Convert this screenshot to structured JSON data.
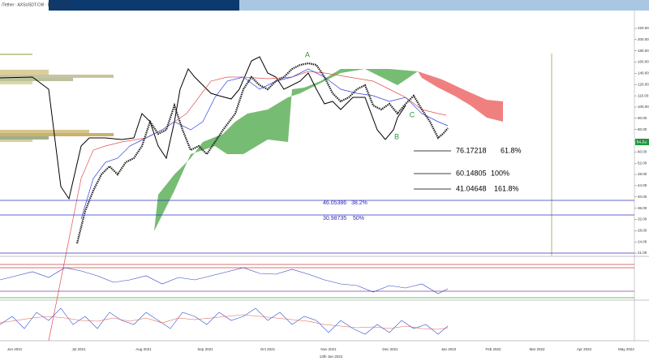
{
  "header": {
    "title": "/Tether · AXSUSDT.CW · Daily · USD"
  },
  "price_axis": [
    "220.00",
    "200.00",
    "180.00",
    "160.00",
    "140.00",
    "120.00",
    "110.00",
    "100.00",
    "90.00",
    "80.00",
    "72.00",
    "60.00",
    "52.00",
    "48.00",
    "44.00",
    "40.00",
    "36.00",
    "32.00",
    "28.00",
    "24.00",
    "21.00"
  ],
  "current_price": "64.88",
  "fib_levels": [
    {
      "price": "76.17218",
      "ratio": "61.8%"
    },
    {
      "price": "60.14805",
      "ratio": "100%"
    },
    {
      "price": "41.04648",
      "ratio": "161.8%"
    },
    {
      "price": "46.05386",
      "ratio": "38.2%"
    },
    {
      "price": "30.98735",
      "ratio": "50%"
    }
  ],
  "wave_labels": [
    "A",
    "B",
    "C"
  ],
  "date_axis": [
    "Jun 2021",
    "Jul 2021",
    "Aug 2021",
    "Sep 2021",
    "Oct 2021",
    "Nov 2021",
    "Dec 2021",
    "Jan 2022",
    "Feb 2022",
    "Mar 2022",
    "Apr 2022",
    "May 2022"
  ],
  "cursor_date": "13th Jan 2022"
}
